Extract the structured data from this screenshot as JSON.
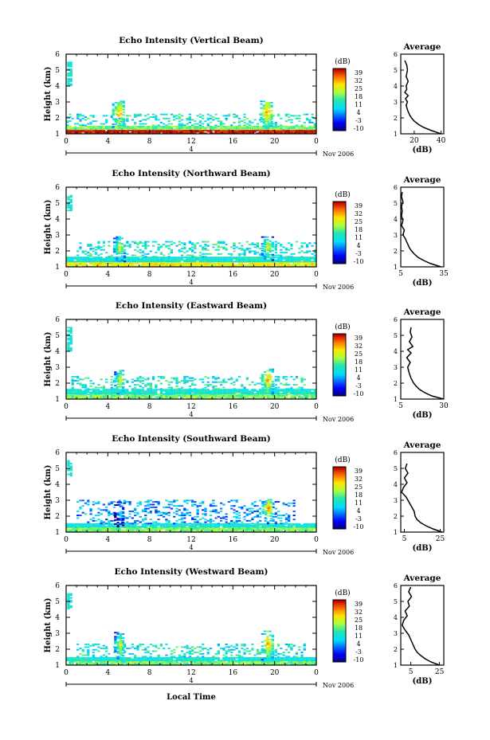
{
  "figure": {
    "shared_xlabel": "Local Time",
    "date_label": "Nov 2006",
    "day_marker": "4"
  },
  "chart_data": [
    {
      "type": "heatmap",
      "title": "Echo Intensity (Vertical Beam)",
      "ylabel": "Height (km)",
      "xlabel": "Local Time",
      "xlim": [
        0,
        24
      ],
      "ylim": [
        1,
        6
      ],
      "x_ticks": [
        "0",
        "4",
        "8",
        "12",
        "16",
        "20",
        "0"
      ],
      "y_ticks": [
        "1",
        "2",
        "3",
        "4",
        "5",
        "6"
      ],
      "colorbar": {
        "unit": "(dB)",
        "ticks": [
          "39",
          "32",
          "25",
          "18",
          "11",
          "4",
          "-3",
          "-10"
        ]
      },
      "echo_regions": [
        {
          "x": [
            0,
            24
          ],
          "y": [
            1.0,
            1.25
          ],
          "level": 39,
          "kind": "band"
        },
        {
          "x": [
            0,
            24
          ],
          "y": [
            1.25,
            1.5
          ],
          "level": 18,
          "kind": "band"
        },
        {
          "x": [
            0,
            24
          ],
          "y": [
            1.5,
            2.2
          ],
          "level": 11,
          "kind": "scatter"
        },
        {
          "x": [
            4.4,
            5.6
          ],
          "y": [
            1.3,
            3.0
          ],
          "level": 32,
          "kind": "plume"
        },
        {
          "x": [
            18.6,
            19.8
          ],
          "y": [
            1.3,
            3.1
          ],
          "level": 32,
          "kind": "plume"
        },
        {
          "x": [
            0.1,
            0.4
          ],
          "y": [
            4.0,
            5.5
          ],
          "level": 11,
          "kind": "column"
        }
      ],
      "profile": {
        "title": "Average",
        "xlabel": "(dB)",
        "x_ticks": [
          "20",
          "40"
        ],
        "xlim": [
          10,
          42
        ],
        "y_ticks": [
          "1",
          "2",
          "3",
          "4",
          "5",
          "6"
        ],
        "height": [
          1.0,
          1.2,
          1.4,
          1.6,
          1.8,
          2.0,
          2.2,
          2.5,
          2.8,
          3.0,
          3.2,
          3.4,
          3.6,
          3.8,
          4.0,
          4.3,
          4.6,
          5.0,
          5.3,
          5.6
        ],
        "db": [
          40,
          33,
          27,
          23,
          20,
          18,
          16.5,
          15,
          14,
          15,
          13.5,
          15.5,
          13,
          14.5,
          14,
          15.5,
          14,
          15,
          14.5,
          13
        ]
      }
    },
    {
      "type": "heatmap",
      "title": "Echo Intensity (Northward Beam)",
      "ylabel": "Height (km)",
      "xlabel": "Local Time",
      "xlim": [
        0,
        24
      ],
      "ylim": [
        1,
        6
      ],
      "x_ticks": [
        "0",
        "4",
        "8",
        "12",
        "16",
        "20",
        "0"
      ],
      "y_ticks": [
        "1",
        "2",
        "3",
        "4",
        "5",
        "6"
      ],
      "colorbar": {
        "unit": "(dB)",
        "ticks": [
          "39",
          "32",
          "25",
          "18",
          "11",
          "4",
          "-3",
          "-10"
        ]
      },
      "echo_regions": [
        {
          "x": [
            0,
            24
          ],
          "y": [
            1.0,
            1.3
          ],
          "level": 25,
          "kind": "band"
        },
        {
          "x": [
            0,
            24
          ],
          "y": [
            1.3,
            1.6
          ],
          "level": 11,
          "kind": "band"
        },
        {
          "x": [
            1,
            24
          ],
          "y": [
            1.6,
            2.6
          ],
          "level": 11,
          "kind": "scatter"
        },
        {
          "x": [
            4.5,
            5.6
          ],
          "y": [
            1.3,
            2.9
          ],
          "level": 25,
          "kind": "plume"
        },
        {
          "x": [
            18.7,
            19.8
          ],
          "y": [
            1.3,
            2.9
          ],
          "level": 25,
          "kind": "plume"
        },
        {
          "x": [
            0.1,
            0.4
          ],
          "y": [
            4.5,
            5.5
          ],
          "level": 11,
          "kind": "column"
        }
      ],
      "profile": {
        "title": "Average",
        "xlabel": "(dB)",
        "x_ticks": [
          "5",
          "35"
        ],
        "xlim": [
          5,
          35
        ],
        "y_ticks": [
          "1",
          "2",
          "3",
          "4",
          "5",
          "6"
        ],
        "height": [
          1.0,
          1.2,
          1.4,
          1.6,
          1.8,
          2.0,
          2.2,
          2.5,
          2.8,
          3.0,
          3.3,
          3.6,
          3.9,
          4.2,
          4.5,
          4.8,
          5.1,
          5.4,
          5.7
        ],
        "db": [
          33,
          26,
          21,
          17,
          14.5,
          12.5,
          11,
          9.5,
          8,
          6.5,
          7.5,
          5.5,
          6.5,
          5.5,
          6,
          5.5,
          6.5,
          5.5,
          6
        ]
      }
    },
    {
      "type": "heatmap",
      "title": "Echo Intensity (Eastward Beam)",
      "ylabel": "Height (km)",
      "xlabel": "Local Time",
      "xlim": [
        0,
        24
      ],
      "ylim": [
        1,
        6
      ],
      "x_ticks": [
        "0",
        "4",
        "8",
        "12",
        "16",
        "20",
        "0"
      ],
      "y_ticks": [
        "1",
        "2",
        "3",
        "4",
        "5",
        "6"
      ],
      "colorbar": {
        "unit": "(dB)",
        "ticks": [
          "39",
          "32",
          "25",
          "18",
          "11",
          "4",
          "-3",
          "-10"
        ]
      },
      "echo_regions": [
        {
          "x": [
            0,
            24
          ],
          "y": [
            1.0,
            1.3
          ],
          "level": 18,
          "kind": "band"
        },
        {
          "x": [
            0,
            24
          ],
          "y": [
            1.3,
            1.6
          ],
          "level": 11,
          "kind": "band"
        },
        {
          "x": [
            0.5,
            23
          ],
          "y": [
            1.6,
            2.4
          ],
          "level": 11,
          "kind": "scatter"
        },
        {
          "x": [
            4.6,
            5.6
          ],
          "y": [
            1.3,
            2.8
          ],
          "level": 25,
          "kind": "plume"
        },
        {
          "x": [
            18.7,
            19.8
          ],
          "y": [
            1.3,
            2.9
          ],
          "level": 32,
          "kind": "plume"
        },
        {
          "x": [
            0.1,
            0.4
          ],
          "y": [
            4.0,
            5.5
          ],
          "level": 11,
          "kind": "column"
        }
      ],
      "profile": {
        "title": "Average",
        "xlabel": "(dB)",
        "x_ticks": [
          "5",
          "30"
        ],
        "xlim": [
          5,
          30
        ],
        "y_ticks": [
          "1",
          "2",
          "3",
          "4",
          "5",
          "6"
        ],
        "height": [
          1.0,
          1.2,
          1.4,
          1.6,
          1.8,
          2.0,
          2.3,
          2.6,
          3.0,
          3.3,
          3.6,
          3.9,
          4.1,
          4.3,
          4.6,
          4.9,
          5.2,
          5.5
        ],
        "db": [
          30,
          23,
          19,
          16,
          14,
          12.5,
          11,
          10,
          9,
          10.5,
          8.5,
          11,
          9,
          12,
          10,
          11.5,
          10.5,
          11
        ]
      }
    },
    {
      "type": "heatmap",
      "title": "Echo Intensity (Southward Beam)",
      "ylabel": "Height (km)",
      "xlabel": "Local Time",
      "xlim": [
        0,
        24
      ],
      "ylim": [
        1,
        6
      ],
      "x_ticks": [
        "0",
        "4",
        "8",
        "12",
        "16",
        "20",
        "0"
      ],
      "y_ticks": [
        "1",
        "2",
        "3",
        "4",
        "5",
        "6"
      ],
      "colorbar": {
        "unit": "(dB)",
        "ticks": [
          "39",
          "32",
          "25",
          "18",
          "11",
          "4",
          "-3",
          "-10"
        ]
      },
      "echo_regions": [
        {
          "x": [
            0,
            24
          ],
          "y": [
            1.0,
            1.3
          ],
          "level": 18,
          "kind": "band"
        },
        {
          "x": [
            0,
            24
          ],
          "y": [
            1.3,
            1.5
          ],
          "level": 11,
          "kind": "band"
        },
        {
          "x": [
            1,
            22
          ],
          "y": [
            1.5,
            3.0
          ],
          "level": 4,
          "kind": "scatter"
        },
        {
          "x": [
            4.6,
            5.6
          ],
          "y": [
            1.3,
            2.9
          ],
          "level": 11,
          "kind": "plume"
        },
        {
          "x": [
            18.8,
            19.8
          ],
          "y": [
            1.8,
            3.0
          ],
          "level": 32,
          "kind": "plume"
        },
        {
          "x": [
            0.1,
            0.4
          ],
          "y": [
            4.5,
            5.5
          ],
          "level": 11,
          "kind": "column"
        }
      ],
      "profile": {
        "title": "Average",
        "xlabel": "(dB)",
        "x_ticks": [
          "5",
          "25"
        ],
        "xlim": [
          3,
          27
        ],
        "y_ticks": [
          "1",
          "2",
          "3",
          "4",
          "5",
          "6"
        ],
        "height": [
          1.0,
          1.2,
          1.4,
          1.6,
          1.8,
          2.0,
          2.3,
          2.6,
          2.9,
          3.2,
          3.5,
          3.8,
          4.1,
          4.4,
          4.7,
          5.0,
          5.3
        ],
        "db": [
          26,
          21,
          17,
          14,
          12,
          11,
          10.5,
          9,
          7.5,
          6,
          3.5,
          4.5,
          6.5,
          5,
          7,
          5.5,
          6.5
        ]
      }
    },
    {
      "type": "heatmap",
      "title": "Echo Intensity (Westward Beam)",
      "ylabel": "Height (km)",
      "xlabel": "Local Time",
      "xlim": [
        0,
        24
      ],
      "ylim": [
        1,
        6
      ],
      "x_ticks": [
        "0",
        "4",
        "8",
        "12",
        "16",
        "20",
        "0"
      ],
      "y_ticks": [
        "1",
        "2",
        "3",
        "4",
        "5",
        "6"
      ],
      "colorbar": {
        "unit": "(dB)",
        "ticks": [
          "39",
          "32",
          "25",
          "18",
          "11",
          "4",
          "-3",
          "-10"
        ]
      },
      "echo_regions": [
        {
          "x": [
            0,
            24
          ],
          "y": [
            1.0,
            1.25
          ],
          "level": 18,
          "kind": "band"
        },
        {
          "x": [
            0,
            24
          ],
          "y": [
            1.25,
            1.5
          ],
          "level": 11,
          "kind": "band"
        },
        {
          "x": [
            1,
            23
          ],
          "y": [
            1.5,
            2.3
          ],
          "level": 11,
          "kind": "scatter"
        },
        {
          "x": [
            4.6,
            5.6
          ],
          "y": [
            1.3,
            3.0
          ],
          "level": 25,
          "kind": "plume"
        },
        {
          "x": [
            18.7,
            19.8
          ],
          "y": [
            1.3,
            3.1
          ],
          "level": 32,
          "kind": "plume"
        },
        {
          "x": [
            0.1,
            0.4
          ],
          "y": [
            4.5,
            5.5
          ],
          "level": 11,
          "kind": "column"
        }
      ],
      "profile": {
        "title": "Average",
        "xlabel": "(dB)",
        "x_ticks": [
          "5",
          "25"
        ],
        "xlim": [
          -2,
          28
        ],
        "y_ticks": [
          "1",
          "2",
          "3",
          "4",
          "5",
          "6"
        ],
        "height": [
          1.0,
          1.2,
          1.4,
          1.6,
          1.8,
          2.0,
          2.3,
          2.6,
          2.9,
          3.2,
          3.5,
          3.8,
          4.1,
          4.4,
          4.7,
          5.0,
          5.3,
          5.6,
          5.9
        ],
        "db": [
          25,
          19,
          15,
          12,
          9.5,
          8,
          6.5,
          5,
          3.5,
          1,
          -1,
          0,
          2.5,
          1,
          4,
          3,
          5.5,
          3.5,
          5
        ]
      }
    }
  ]
}
